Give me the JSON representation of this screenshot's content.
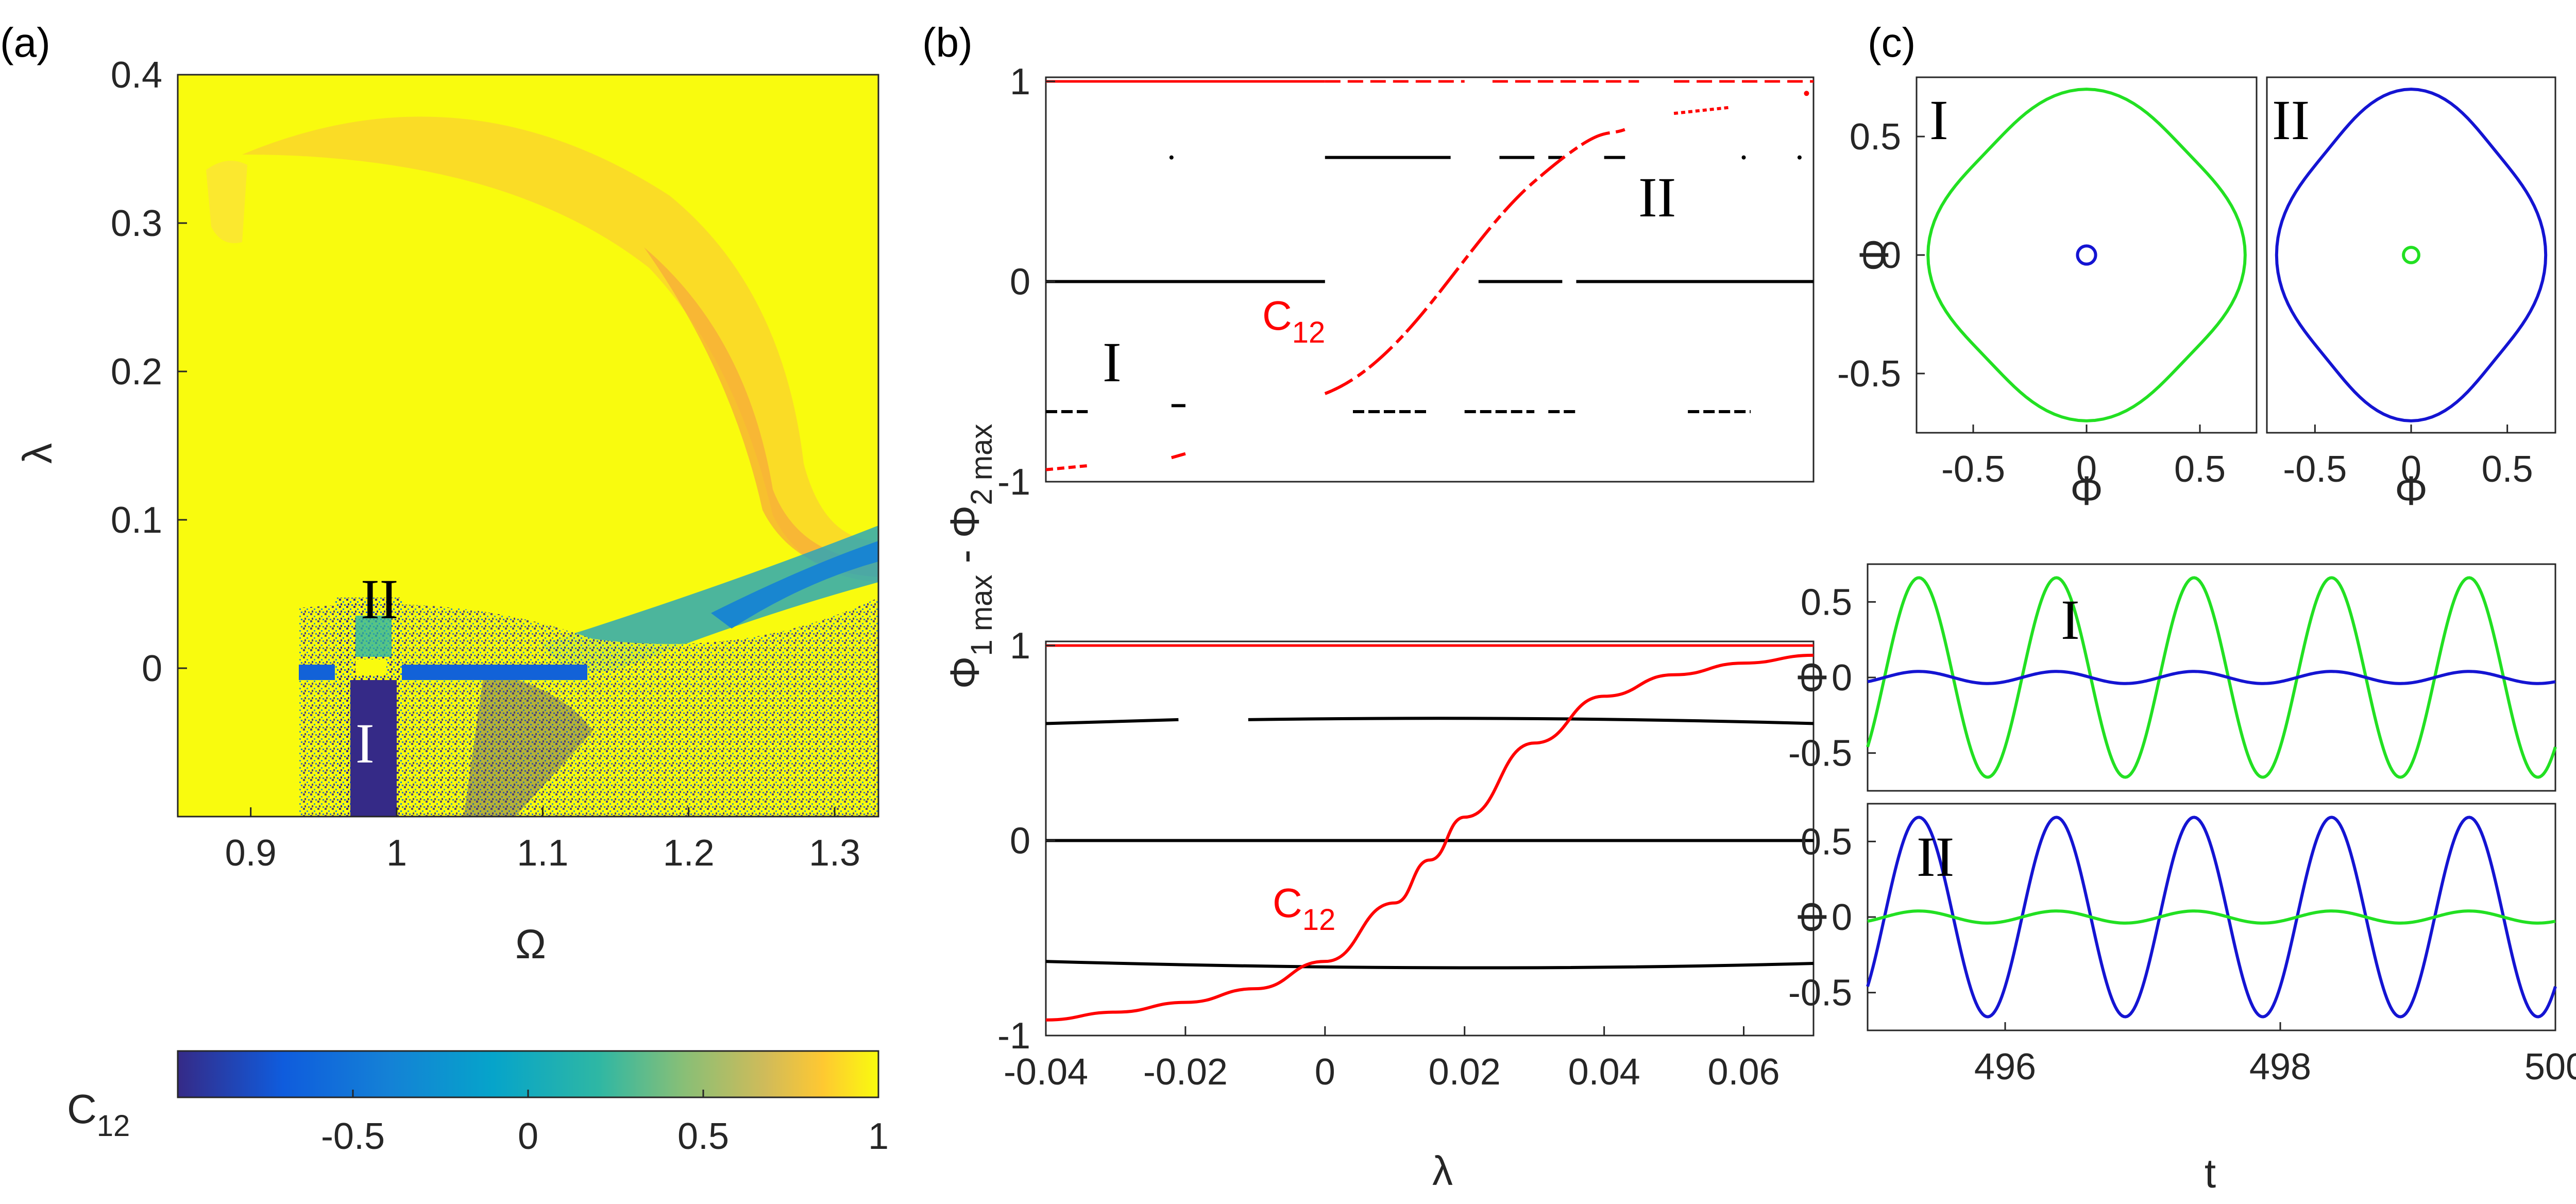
{
  "panel_labels": {
    "a": "(a)",
    "b": "(b)",
    "c": "(c)"
  },
  "colors": {
    "red": "#ff0000",
    "green": "#22e022",
    "blue": "#1414d2",
    "black": "#000000",
    "yellow": "#f9fb0e",
    "navy": "#352a87"
  },
  "colorbar": {
    "label_main": "C",
    "label_sub": "12",
    "ticks": [
      "-0.5",
      "0",
      "0.5",
      "1"
    ],
    "range": [
      -1,
      1
    ],
    "colormap": "parula"
  },
  "chart_data": [
    {
      "id": "a",
      "type": "heatmap",
      "xlabel": "Ω",
      "ylabel": "λ",
      "xlim": [
        0.85,
        1.33
      ],
      "ylim": [
        -0.1,
        0.4
      ],
      "xticks": [
        "0.9",
        "1",
        "1.1",
        "1.2",
        "1.3"
      ],
      "yticks": [
        "0",
        "0.1",
        "0.2",
        "0.3",
        "0.4"
      ],
      "annotations": [
        "I",
        "II"
      ]
    },
    {
      "id": "b_top",
      "type": "scatter",
      "xlim": [
        -0.04,
        0.07
      ],
      "ylim": [
        -1,
        1
      ],
      "yticks": [
        "-1",
        "0",
        "1"
      ],
      "annotations": {
        "curve": "C",
        "curve_sub": "12",
        "roman1": "I",
        "roman2": "II"
      },
      "series": [
        {
          "color": "black",
          "y": [
            0.62,
            0,
            -0.65
          ]
        },
        {
          "color": "red",
          "x": [
            -0.04,
            -0.02,
            0,
            0.01,
            0.02,
            0.03,
            0.04,
            0.06,
            0.07
          ],
          "y": [
            -0.94,
            -0.88,
            -0.56,
            -0.35,
            0.05,
            0.45,
            0.7,
            0.82,
            0.9
          ]
        }
      ]
    },
    {
      "id": "b_bottom",
      "type": "line",
      "xlabel": "λ",
      "ylabel_main": "Φ",
      "ylabel_parts": [
        "1 max",
        " - Φ",
        "2 max"
      ],
      "xlim": [
        -0.04,
        0.07
      ],
      "ylim": [
        -1,
        1
      ],
      "xticks": [
        "-0.04",
        "-0.02",
        "0",
        "0.02",
        "0.04",
        "0.06"
      ],
      "yticks": [
        "-1",
        "0",
        "1"
      ],
      "annotations": {
        "curve": "C",
        "curve_sub": "12"
      },
      "series": [
        {
          "color": "red",
          "x": [
            -0.04,
            -0.03,
            -0.02,
            -0.01,
            0,
            0.01,
            0.015,
            0.02,
            0.03,
            0.04,
            0.05,
            0.06,
            0.07
          ],
          "y": [
            -0.92,
            -0.88,
            -0.83,
            -0.76,
            -0.62,
            -0.32,
            -0.1,
            0.12,
            0.5,
            0.74,
            0.85,
            0.91,
            0.95
          ]
        },
        {
          "color": "black",
          "y": [
            0.62,
            0,
            -0.64
          ]
        }
      ]
    },
    {
      "id": "c_I",
      "type": "line",
      "xlabel": "Φ",
      "ylabel": "Φ",
      "xlim": [
        -0.75,
        0.75
      ],
      "ylim": [
        -0.75,
        0.75
      ],
      "xticks": [
        "-0.5",
        "0",
        "0.5"
      ],
      "yticks": [
        "-0.5",
        "0",
        "0.5"
      ],
      "label": "I",
      "series": [
        {
          "color": "green",
          "amplitude": 0.66
        },
        {
          "color": "blue",
          "amplitude": 0.04
        }
      ]
    },
    {
      "id": "c_II",
      "type": "line",
      "xlabel": "Φ",
      "xlim": [
        -0.75,
        0.75
      ],
      "ylim": [
        -0.75,
        0.75
      ],
      "xticks": [
        "-0.5",
        "0",
        "0.5"
      ],
      "label": "II",
      "series": [
        {
          "color": "blue",
          "amplitude": 0.66
        },
        {
          "color": "green",
          "amplitude": 0.04
        }
      ]
    },
    {
      "id": "c_tI",
      "type": "line",
      "ylabel": "Φ",
      "xlim": [
        495,
        500
      ],
      "ylim": [
        -0.75,
        0.75
      ],
      "yticks": [
        "-0.5",
        "0",
        "0.5"
      ],
      "label": "I",
      "series": [
        {
          "color": "green",
          "amplitude": 0.66,
          "period": 1
        },
        {
          "color": "blue",
          "amplitude": 0.04,
          "period": 1
        }
      ]
    },
    {
      "id": "c_tII",
      "type": "line",
      "xlabel": "t",
      "ylabel": "Φ",
      "xlim": [
        495,
        500
      ],
      "ylim": [
        -0.75,
        0.75
      ],
      "xticks": [
        "496",
        "498",
        "500"
      ],
      "yticks": [
        "-0.5",
        "0",
        "0.5"
      ],
      "label": "II",
      "series": [
        {
          "color": "blue",
          "amplitude": 0.66,
          "period": 1
        },
        {
          "color": "green",
          "amplitude": 0.04,
          "period": 1
        }
      ]
    }
  ]
}
